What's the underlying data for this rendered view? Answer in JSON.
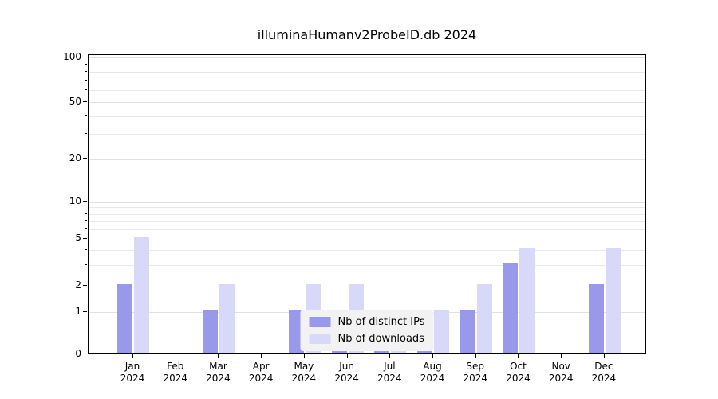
{
  "chart_data": {
    "type": "bar",
    "title": "illuminaHumanv2ProbeID.db 2024",
    "xlabel": "",
    "ylabel": "",
    "year": "2024",
    "categories": [
      "Jan",
      "Feb",
      "Mar",
      "Apr",
      "May",
      "Jun",
      "Jul",
      "Aug",
      "Sep",
      "Oct",
      "Nov",
      "Dec"
    ],
    "series": [
      {
        "name": "Nb of distinct IPs",
        "color": "#9999ec",
        "values": [
          2,
          0,
          1,
          0,
          1,
          1,
          1,
          1,
          1,
          3,
          0,
          2
        ]
      },
      {
        "name": "Nb of downloads",
        "color": "#d8d8f8",
        "values": [
          5,
          0,
          2,
          0,
          2,
          2,
          1,
          1,
          2,
          4,
          0,
          4
        ]
      }
    ],
    "yticks": [
      0,
      1,
      2,
      5,
      10,
      20,
      50,
      100
    ],
    "minor_gridlines": [
      3,
      4,
      6,
      7,
      8,
      9,
      30,
      40,
      60,
      70,
      80,
      90
    ],
    "ylim": [
      0,
      110
    ],
    "yscale": "log-like-with-zero",
    "grid": "horizontal",
    "legend_position": "bottom-center-inside",
    "background": "#ffffff"
  }
}
